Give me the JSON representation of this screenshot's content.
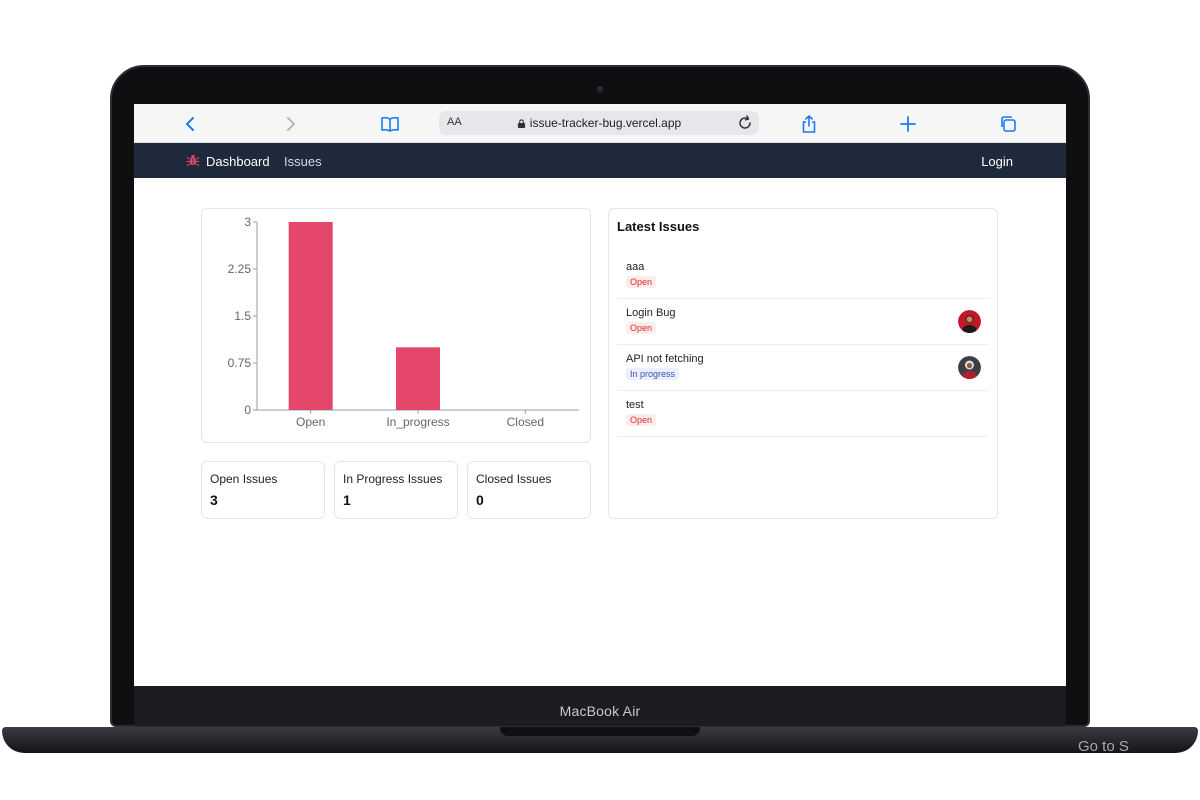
{
  "device": {
    "brand": "MacBook Air",
    "overlay_text": "Go to S"
  },
  "browser": {
    "text_size_label": "AA",
    "url": "issue-tracker-bug.vercel.app"
  },
  "navbar": {
    "dashboard": "Dashboard",
    "issues": "Issues",
    "login": "Login",
    "bg_color": "#1e293b"
  },
  "chart_data": {
    "type": "bar",
    "categories": [
      "Open",
      "In_progress",
      "Closed"
    ],
    "values": [
      3,
      1,
      0
    ],
    "ylim": [
      0,
      3
    ],
    "yticks": [
      "0",
      "0.75",
      "1.5",
      "2.25",
      "3"
    ],
    "bar_color": "#e5476a",
    "grid": false
  },
  "stats": [
    {
      "label": "Open Issues",
      "value": "3"
    },
    {
      "label": "In Progress Issues",
      "value": "1"
    },
    {
      "label": "Closed Issues",
      "value": "0"
    }
  ],
  "latest": {
    "title": "Latest Issues",
    "issues": [
      {
        "title": "aaa",
        "status": "Open",
        "avatar": false
      },
      {
        "title": "Login Bug",
        "status": "Open",
        "avatar": true
      },
      {
        "title": "API not fetching",
        "status": "In progress",
        "avatar": true
      },
      {
        "title": "test",
        "status": "Open",
        "avatar": false
      }
    ]
  }
}
